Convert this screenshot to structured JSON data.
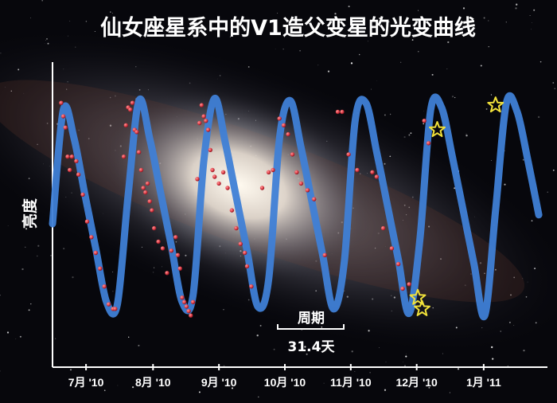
{
  "chart_data": {
    "type": "line",
    "title": "仙女座星系中的V1造父变星的光变曲线",
    "ylabel": "亮度",
    "xlabel": "",
    "x_ticks": [
      "7月 '10",
      "8月 '10",
      "9月 '10",
      "10月 '10",
      "11月 '10",
      "12月 '10",
      "1月 '11"
    ],
    "period_annotation": {
      "label": "周期",
      "value": "31.4天",
      "period_days": 31.4
    },
    "grid": false,
    "legend": "none",
    "x_unit": "date",
    "xlim": [
      "2010-07-01",
      "2011-02-15"
    ],
    "ylim": [
      0,
      1
    ],
    "series": [
      {
        "style": "curve",
        "color": "#3f7fd6",
        "period_days": 31.4,
        "x": [
          "2010-07-01",
          "2010-07-06",
          "2010-07-11",
          "2010-07-16",
          "2010-07-21",
          "2010-07-26",
          "2010-07-31",
          "2010-08-05",
          "2010-08-10",
          "2010-08-15",
          "2010-08-20",
          "2010-08-25",
          "2010-08-30",
          "2010-09-04",
          "2010-09-09",
          "2010-09-14",
          "2010-09-19",
          "2010-09-24",
          "2010-09-29",
          "2010-10-04",
          "2010-10-09",
          "2010-10-14",
          "2010-10-19",
          "2010-10-24",
          "2010-10-29",
          "2010-11-03",
          "2010-11-08",
          "2010-11-13",
          "2010-11-18",
          "2010-11-23",
          "2010-11-28",
          "2010-12-03",
          "2010-12-08",
          "2010-12-13",
          "2010-12-18",
          "2010-12-23",
          "2010-12-28",
          "2011-01-02",
          "2011-01-07",
          "2011-01-12",
          "2011-01-17",
          "2011-01-22",
          "2011-01-27",
          "2011-02-01",
          "2011-02-06",
          "2011-02-11"
        ],
        "y": [
          0.42,
          0.93,
          0.8,
          0.55,
          0.31,
          0.07,
          0.06,
          0.55,
          0.97,
          0.8,
          0.56,
          0.32,
          0.07,
          0.1,
          0.7,
          0.98,
          0.78,
          0.54,
          0.3,
          0.05,
          0.17,
          0.8,
          0.97,
          0.76,
          0.52,
          0.28,
          0.04,
          0.25,
          0.88,
          0.96,
          0.74,
          0.5,
          0.26,
          0.02,
          0.35,
          0.93,
          0.94,
          0.72,
          0.48,
          0.24,
          0.01,
          0.48,
          0.96,
          0.92,
          0.7,
          0.46
        ]
      },
      {
        "style": "points",
        "color": "#e0404a",
        "x": [
          "2010-07-05",
          "2010-07-06",
          "2010-07-07",
          "2010-07-08",
          "2010-07-09",
          "2010-07-10",
          "2010-07-12",
          "2010-07-13",
          "2010-07-15",
          "2010-07-17",
          "2010-07-19",
          "2010-07-21",
          "2010-07-23",
          "2010-07-25",
          "2010-07-27",
          "2010-07-29",
          "2010-07-30",
          "2010-08-03",
          "2010-08-04",
          "2010-08-05",
          "2010-08-06",
          "2010-08-07",
          "2010-08-08",
          "2010-08-09",
          "2010-08-10",
          "2010-08-11",
          "2010-08-12",
          "2010-08-13",
          "2010-08-14",
          "2010-08-15",
          "2010-08-16",
          "2010-08-17",
          "2010-08-19",
          "2010-08-21",
          "2010-08-23",
          "2010-08-25",
          "2010-08-27",
          "2010-08-28",
          "2010-08-29",
          "2010-08-30",
          "2010-08-31",
          "2010-09-01",
          "2010-09-02",
          "2010-09-03",
          "2010-09-04",
          "2010-09-06",
          "2010-09-07",
          "2010-09-08",
          "2010-09-09",
          "2010-09-10",
          "2010-09-11",
          "2010-09-12",
          "2010-09-13",
          "2010-09-14",
          "2010-09-16",
          "2010-09-18",
          "2010-09-20",
          "2010-09-22",
          "2010-09-24",
          "2010-09-26",
          "2010-09-28",
          "2010-09-29",
          "2010-10-01",
          "2010-10-06",
          "2010-10-09",
          "2010-10-11",
          "2010-10-14",
          "2010-10-16",
          "2010-10-18",
          "2010-10-20",
          "2010-10-22",
          "2010-10-24",
          "2010-10-27",
          "2010-10-30",
          "2010-11-04",
          "2010-11-10",
          "2010-11-12",
          "2010-11-15",
          "2010-11-19",
          "2010-11-26",
          "2010-11-28",
          "2010-12-01",
          "2010-12-05",
          "2010-12-08",
          "2010-12-10",
          "2010-12-13",
          "2010-12-20",
          "2010-12-22"
        ],
        "y": [
          0.96,
          0.9,
          0.85,
          0.72,
          0.66,
          0.72,
          0.7,
          0.64,
          0.55,
          0.43,
          0.36,
          0.29,
          0.22,
          0.14,
          0.06,
          0.04,
          0.04,
          0.72,
          0.86,
          0.94,
          0.93,
          0.96,
          0.84,
          0.83,
          0.74,
          0.66,
          0.58,
          0.56,
          0.6,
          0.52,
          0.48,
          0.4,
          0.34,
          0.31,
          0.2,
          0.3,
          0.36,
          0.28,
          0.22,
          0.09,
          0.07,
          0.05,
          0.03,
          0.01,
          0.07,
          0.62,
          0.87,
          0.95,
          0.9,
          0.88,
          0.84,
          0.75,
          0.66,
          0.63,
          0.6,
          0.65,
          0.58,
          0.48,
          0.4,
          0.33,
          0.29,
          0.23,
          0.14,
          0.58,
          0.65,
          0.66,
          0.89,
          0.86,
          0.82,
          0.73,
          0.65,
          0.6,
          0.57,
          0.53,
          0.28,
          0.92,
          0.92,
          0.73,
          0.66,
          0.65,
          0.63,
          0.4,
          0.31,
          0.24,
          0.13,
          0.15,
          0.88,
          0.78
        ]
      },
      {
        "style": "stars",
        "color": "#f2e23a",
        "x": [
          "2010-12-17",
          "2010-12-19",
          "2010-12-26",
          "2011-01-22"
        ],
        "y": [
          0.09,
          0.04,
          0.84,
          0.95
        ]
      }
    ]
  }
}
